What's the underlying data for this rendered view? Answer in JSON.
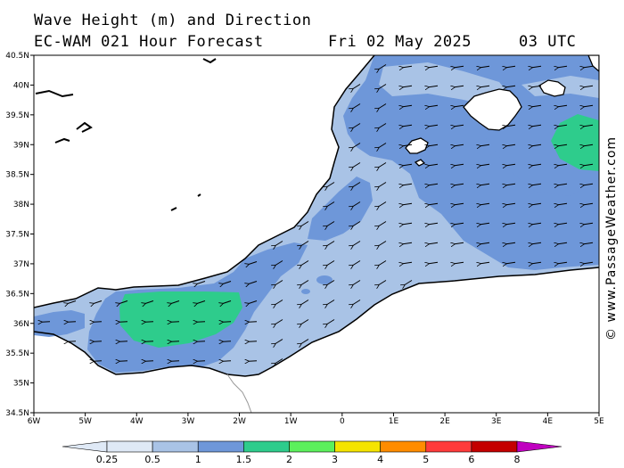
{
  "header": {
    "line1": "Wave Height (m) and Direction",
    "line2": "EC-WAM 021 Hour Forecast",
    "date": "Fri 02 May 2025",
    "time": "03 UTC"
  },
  "map": {
    "lat_labels": [
      "40.5N",
      "40N",
      "39.5N",
      "39N",
      "38.5N",
      "38N",
      "37.5N",
      "37N",
      "36.5N",
      "36N",
      "35.5N",
      "35N",
      "34.5N"
    ],
    "lon_labels": [
      "6W",
      "5W",
      "4W",
      "3W",
      "2W",
      "1W",
      "0",
      "1E",
      "2E",
      "3E",
      "4E",
      "5E"
    ],
    "wave_direction": "arrows pointing toward south-west",
    "colors": {
      "land": "#ffffff",
      "sea_0_5_1": "#a9c3e6",
      "sea_1_1_5": "#6e97d9",
      "sea_1_5_2": "#2ecc8c",
      "coast": "#000000"
    }
  },
  "legend": {
    "ticks": [
      "0.25",
      "0.5",
      "1",
      "1.5",
      "2",
      "3",
      "4",
      "5",
      "6",
      "8"
    ],
    "colors": [
      "#dfe9f6",
      "#a9c3e6",
      "#6e97d9",
      "#2ecc8c",
      "#5cf05c",
      "#f5e400",
      "#ff8c00",
      "#ff3b3b",
      "#c40000",
      "#c000c0"
    ]
  },
  "credit": "© www.PassageWeather.com"
}
